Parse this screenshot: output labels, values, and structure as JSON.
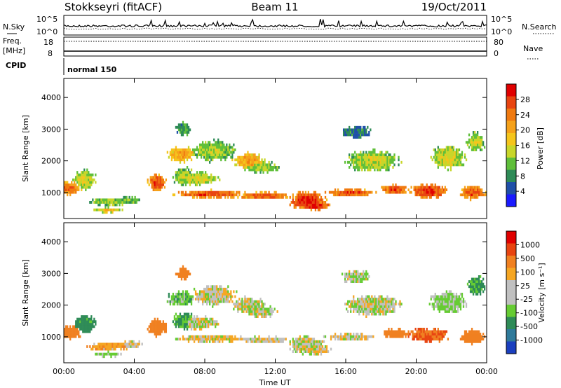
{
  "header": {
    "station": "Stokkseyri (fitACF)",
    "beam": "Beam 11",
    "date": "19/Oct/2011"
  },
  "strip_sky": {
    "left_label": "N.Sky",
    "right_label": "N.Search",
    "yticks_left": [
      "10^5",
      "10^0"
    ],
    "yticks_right": [
      "10^5",
      "10^0"
    ]
  },
  "strip_freq": {
    "left_label_1": "Freq.",
    "left_label_2": "[MHz]",
    "yticks_left": [
      "18",
      "8"
    ],
    "right_label": "Nave",
    "yticks_right": [
      "80",
      "0"
    ]
  },
  "cpid": {
    "label": "CPID",
    "value": "normal 150"
  },
  "colors": {
    "power": [
      "#1a1aff",
      "#1f4fa8",
      "#2e8b57",
      "#5fbf3a",
      "#c8d62a",
      "#f5c51c",
      "#f5a11a",
      "#f07a10",
      "#e84410",
      "#e00000"
    ],
    "velocity": [
      "#1a3fbf",
      "#2f7a9a",
      "#2e8b57",
      "#66cc33",
      "#c0c0c0",
      "#c0c0c0",
      "#f5a623",
      "#f08020",
      "#e84410",
      "#e00000"
    ]
  },
  "chart_data": [
    {
      "type": "heatmap",
      "name": "power",
      "ylabel": "Slant Range [km]",
      "ylim": [
        180,
        4600
      ],
      "yticks": [
        1000,
        2000,
        3000,
        4000
      ],
      "xlim_hours": [
        0,
        24
      ],
      "xticks": [
        "00:00",
        "04:00",
        "08:00",
        "12:00",
        "16:00",
        "20:00",
        "00:00"
      ],
      "colorbar": {
        "label": "Power [dB]",
        "range": [
          0,
          32
        ],
        "ticks": [
          "4",
          "8",
          "12",
          "16",
          "20",
          "24",
          "28"
        ]
      }
    },
    {
      "type": "heatmap",
      "name": "velocity",
      "ylabel": "Slant Range [km]",
      "ylim": [
        180,
        4600
      ],
      "yticks": [
        1000,
        2000,
        3000,
        4000
      ],
      "xlim_hours": [
        0,
        24
      ],
      "xticks": [
        "00:00",
        "04:00",
        "08:00",
        "12:00",
        "16:00",
        "20:00",
        "00:00"
      ],
      "xlabel": "Time UT",
      "colorbar": {
        "label": "Velocity [m s⁻¹]",
        "ticks": [
          "1000",
          "500",
          "100",
          "25",
          "-25",
          "-100",
          "-500",
          "-1000"
        ]
      }
    }
  ]
}
